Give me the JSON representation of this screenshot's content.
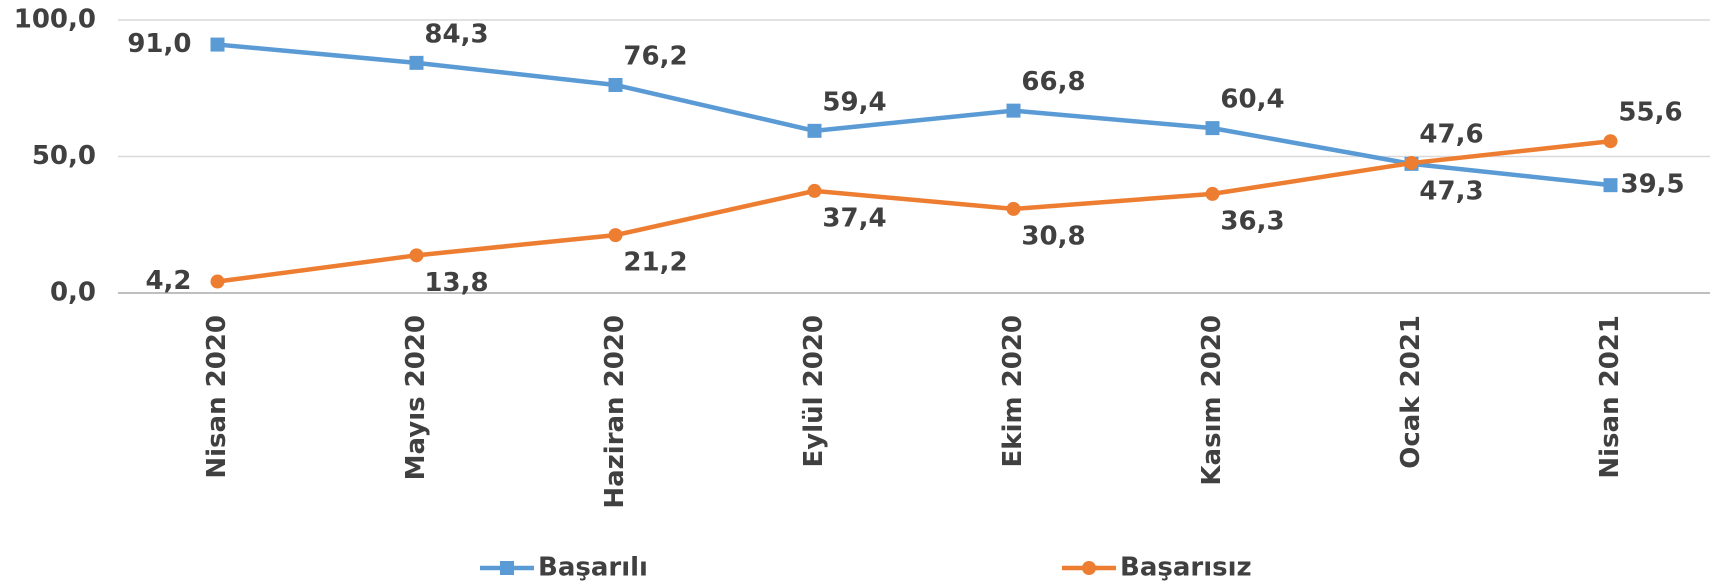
{
  "chart_data": {
    "type": "line",
    "categories": [
      "Nisan 2020",
      "Mayıs 2020",
      "Haziran 2020",
      "Eylül 2020",
      "Ekim 2020",
      "Kasım 2020",
      "Ocak 2021",
      "Nisan 2021"
    ],
    "series": [
      {
        "name": "Başarılı",
        "color": "#5b9bd5",
        "marker": "square",
        "values": [
          91.0,
          84.3,
          76.2,
          59.4,
          66.8,
          60.4,
          47.3,
          39.5
        ],
        "value_labels": [
          "91,0",
          "84,3",
          "76,2",
          "59,4",
          "66,8",
          "60,4",
          "47,3",
          "39,5"
        ]
      },
      {
        "name": "Başarısız",
        "color": "#ed7d31",
        "marker": "circle",
        "values": [
          4.2,
          13.8,
          21.2,
          37.4,
          30.8,
          36.3,
          47.6,
          55.6
        ],
        "value_labels": [
          "4,2",
          "13,8",
          "21,2",
          "37,4",
          "30,8",
          "36,3",
          "47,6",
          "55,6"
        ]
      }
    ],
    "ylim": [
      0,
      100
    ],
    "yticks": [
      {
        "value": 0,
        "label": "0,0"
      },
      {
        "value": 50,
        "label": "50,0"
      },
      {
        "value": 100,
        "label": "100,0"
      }
    ],
    "grid": true,
    "legend": "bottom"
  }
}
